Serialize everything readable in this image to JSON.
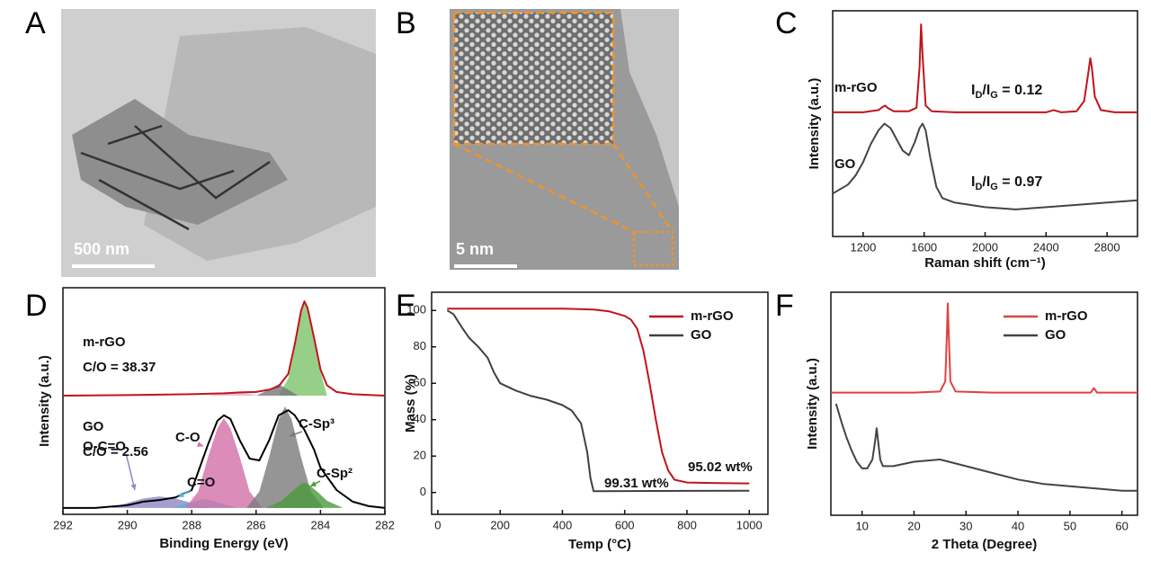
{
  "panels": [
    "A",
    "B",
    "C",
    "D",
    "E",
    "F"
  ],
  "micrographs": [
    {
      "scale_bar": "500 nm"
    },
    {
      "scale_bar": "5 nm"
    }
  ],
  "chart_data": [
    {
      "type": "line",
      "xlabel": "Raman shift (cm⁻¹)",
      "ylabel": "Intensity (a.u.)",
      "xlim": [
        1000,
        3000
      ],
      "xticks": [
        1200,
        1600,
        2000,
        2400,
        2800
      ],
      "ylim": [
        0,
        100
      ],
      "annotations": [
        {
          "parts": [
            "I",
            "D",
            "/I",
            "G",
            " = 0.12"
          ]
        },
        {
          "parts": [
            "I",
            "D",
            "/I",
            "G",
            " = 0.97"
          ]
        }
      ],
      "series": [
        {
          "name": "m-rGO",
          "color": "#c0141c",
          "x": [
            1000,
            1100,
            1200,
            1300,
            1330,
            1345,
            1360,
            1400,
            1500,
            1550,
            1570,
            1580,
            1590,
            1610,
            1650,
            1800,
            2000,
            2200,
            2400,
            2450,
            2500,
            2600,
            2650,
            2680,
            2690,
            2700,
            2720,
            2760,
            2850,
            3000
          ],
          "values": [
            55,
            55,
            55,
            56,
            57.5,
            58,
            57,
            55.5,
            55.5,
            57,
            75,
            94,
            80,
            58,
            55.5,
            55,
            55,
            55,
            55,
            56,
            55,
            55.5,
            60,
            74,
            79,
            75,
            62,
            56,
            55,
            55
          ]
        },
        {
          "name": "GO",
          "color": "#444444",
          "x": [
            1000,
            1050,
            1100,
            1150,
            1200,
            1250,
            1300,
            1340,
            1380,
            1420,
            1460,
            1500,
            1540,
            1570,
            1590,
            1610,
            1640,
            1680,
            1720,
            1800,
            2000,
            2200,
            2400,
            2600,
            2800,
            3000
          ],
          "values": [
            19,
            21,
            23,
            27,
            33,
            41,
            47,
            50,
            48,
            43,
            38,
            36,
            42,
            48,
            50,
            47,
            35,
            22,
            17,
            15,
            13,
            12,
            13,
            14,
            15,
            16
          ]
        }
      ]
    },
    {
      "type": "line",
      "xlabel": "Binding Energy (eV)",
      "ylabel": "Intensity (a.u.)",
      "xlim": [
        292,
        282
      ],
      "xticks": [
        292,
        290,
        288,
        286,
        284,
        282
      ],
      "ylim": [
        0,
        100
      ],
      "annotations": [
        {
          "text": "C/O = 38.37"
        },
        {
          "text": "C/O = 2.56"
        }
      ],
      "series": [
        {
          "name": "m-rGO",
          "color": "#c0141c",
          "x": [
            292,
            290,
            288,
            287,
            286.5,
            286,
            285.6,
            285.3,
            285,
            284.8,
            284.6,
            284.5,
            284.4,
            284.2,
            284,
            283.8,
            283.5,
            283,
            282.5,
            282
          ],
          "values": [
            52.4,
            52.6,
            53,
            53.4,
            53.8,
            54,
            55,
            56.5,
            62,
            75,
            90,
            94,
            91,
            78,
            64,
            57,
            54,
            53,
            52.7,
            52.4
          ]
        },
        {
          "color": "#7cc36a",
          "fill": true,
          "x": [
            285.3,
            285,
            284.8,
            284.6,
            284.5,
            284.4,
            284.2,
            284,
            283.8
          ],
          "values": [
            52.4,
            60,
            73,
            89,
            93.5,
            90,
            77,
            63,
            52.4
          ]
        },
        {
          "color": "#777777",
          "fill": true,
          "x": [
            286,
            285.6,
            285.3,
            285,
            284.7
          ],
          "values": [
            52.4,
            55,
            57.5,
            55,
            52.4
          ]
        },
        {
          "color": "#e6a9cc",
          "fill": true,
          "x": [
            287.5,
            287,
            286.7,
            286.3,
            285.9
          ],
          "values": [
            52.4,
            53.4,
            53.8,
            53.4,
            52.4
          ]
        },
        {
          "name": "GO",
          "color": "#000000",
          "x": [
            292,
            291,
            290,
            289.5,
            289,
            288.5,
            288,
            287.5,
            287.2,
            287,
            286.8,
            286.5,
            286.2,
            285.9,
            285.6,
            285.3,
            285,
            284.8,
            284.5,
            284.2,
            284,
            283.5,
            283,
            282.5,
            282
          ],
          "values": [
            2.8,
            2.8,
            4,
            5.6,
            6.3,
            7.5,
            10.7,
            30.6,
            41.3,
            43.7,
            42.1,
            32.5,
            24.6,
            23.8,
            32.5,
            43.7,
            46,
            43.7,
            37.3,
            28.6,
            20.6,
            10.7,
            5.6,
            3.6,
            2.8
          ]
        },
        {
          "name": "O-C=O",
          "color": "#8c86c4",
          "fill": true,
          "x": [
            290.5,
            290,
            289.5,
            289,
            288.5,
            288,
            287.5
          ],
          "values": [
            2.8,
            5,
            7,
            7.9,
            7,
            5,
            2.8
          ]
        },
        {
          "name": "C=O",
          "color": "#4fb3d9",
          "fill": true,
          "x": [
            288.6,
            288.2,
            287.8,
            287.6,
            287.4,
            287,
            286.6
          ],
          "values": [
            2.8,
            4.5,
            6.2,
            6.7,
            6.2,
            4.5,
            2.8
          ]
        },
        {
          "name": "C-O",
          "color": "#d36fa8",
          "fill": true,
          "x": [
            288.2,
            287.8,
            287.5,
            287.2,
            287,
            286.8,
            286.5,
            286.2,
            285.8
          ],
          "values": [
            2.8,
            10,
            25,
            38,
            42.5,
            38,
            25,
            10,
            2.8
          ]
        },
        {
          "name": "C-Sp³",
          "color": "#7a7a7a",
          "fill": true,
          "x": [
            286.3,
            285.9,
            285.6,
            285.3,
            285.1,
            284.9,
            284.6,
            284.3,
            283.9
          ],
          "values": [
            2.8,
            10,
            25,
            42,
            47.6,
            42,
            25,
            10,
            2.8
          ]
        },
        {
          "name": "C-Sp²",
          "color": "#4a9a3c",
          "fill": true,
          "x": [
            285.7,
            285.2,
            284.9,
            284.6,
            284.5,
            284.4,
            284.1,
            283.8,
            283.3
          ],
          "values": [
            2.8,
            6,
            10,
            13.5,
            13.9,
            13.5,
            10,
            6,
            2.8
          ]
        }
      ]
    },
    {
      "type": "line",
      "xlabel": "Temp (°C)",
      "ylabel": "Mass (%)",
      "xlim": [
        -20,
        1060
      ],
      "xticks": [
        0,
        200,
        400,
        600,
        800,
        1000
      ],
      "ylim": [
        -12,
        110
      ],
      "yticks": [
        0,
        20,
        40,
        60,
        80,
        100
      ],
      "legend": "upper right",
      "annotations": [
        {
          "text": "99.31 wt%",
          "color": "#222222"
        },
        {
          "text": "95.02 wt%",
          "color": "#c0141c"
        }
      ],
      "series": [
        {
          "name": "m-rGO",
          "color": "#c0141c",
          "x": [
            30,
            100,
            200,
            400,
            500,
            550,
            600,
            620,
            640,
            660,
            680,
            700,
            720,
            740,
            760,
            800,
            900,
            1000
          ],
          "values": [
            101,
            101,
            101,
            101,
            100.5,
            99.5,
            97,
            95,
            90,
            78,
            60,
            40,
            22,
            12,
            7,
            5.5,
            5.2,
            5
          ]
        },
        {
          "name": "GO",
          "color": "#404040",
          "x": [
            30,
            50,
            80,
            100,
            130,
            160,
            180,
            200,
            250,
            300,
            350,
            400,
            430,
            460,
            480,
            490,
            500,
            520,
            600,
            800,
            1000
          ],
          "values": [
            100,
            98,
            90,
            85,
            80,
            74,
            66,
            60,
            56,
            53,
            51,
            48,
            45,
            38,
            22,
            8,
            0.7,
            0.7,
            0.8,
            0.9,
            1
          ]
        }
      ]
    },
    {
      "type": "line",
      "xlabel": "2 Theta (Degree)",
      "ylabel": "Intensity (a.u.)",
      "xlim": [
        4,
        63
      ],
      "xticks": [
        10,
        20,
        30,
        40,
        50,
        60
      ],
      "ylim": [
        0,
        100
      ],
      "legend": "upper right",
      "series": [
        {
          "name": "m-rGO",
          "color": "#e04040",
          "x": [
            4,
            10,
            20,
            25,
            26,
            26.3,
            26.5,
            26.7,
            27,
            28,
            35,
            45,
            54,
            54.6,
            55.2,
            60,
            63
          ],
          "values": [
            55,
            55,
            55,
            55.5,
            60,
            80,
            95,
            80,
            60,
            55.5,
            55,
            55,
            55,
            57,
            55,
            55,
            55
          ]
        },
        {
          "name": "GO",
          "color": "#444444",
          "x": [
            5,
            6,
            7,
            8,
            9,
            10,
            11,
            12,
            12.5,
            12.8,
            13.1,
            13.5,
            14,
            16,
            20,
            25,
            30,
            35,
            40,
            45,
            50,
            55,
            60,
            63
          ],
          "values": [
            50,
            42,
            35,
            29,
            24,
            21,
            21,
            25,
            33,
            39,
            33,
            25,
            22,
            22,
            24,
            25,
            22,
            19,
            16,
            14,
            13,
            12,
            11,
            11
          ]
        }
      ]
    }
  ]
}
